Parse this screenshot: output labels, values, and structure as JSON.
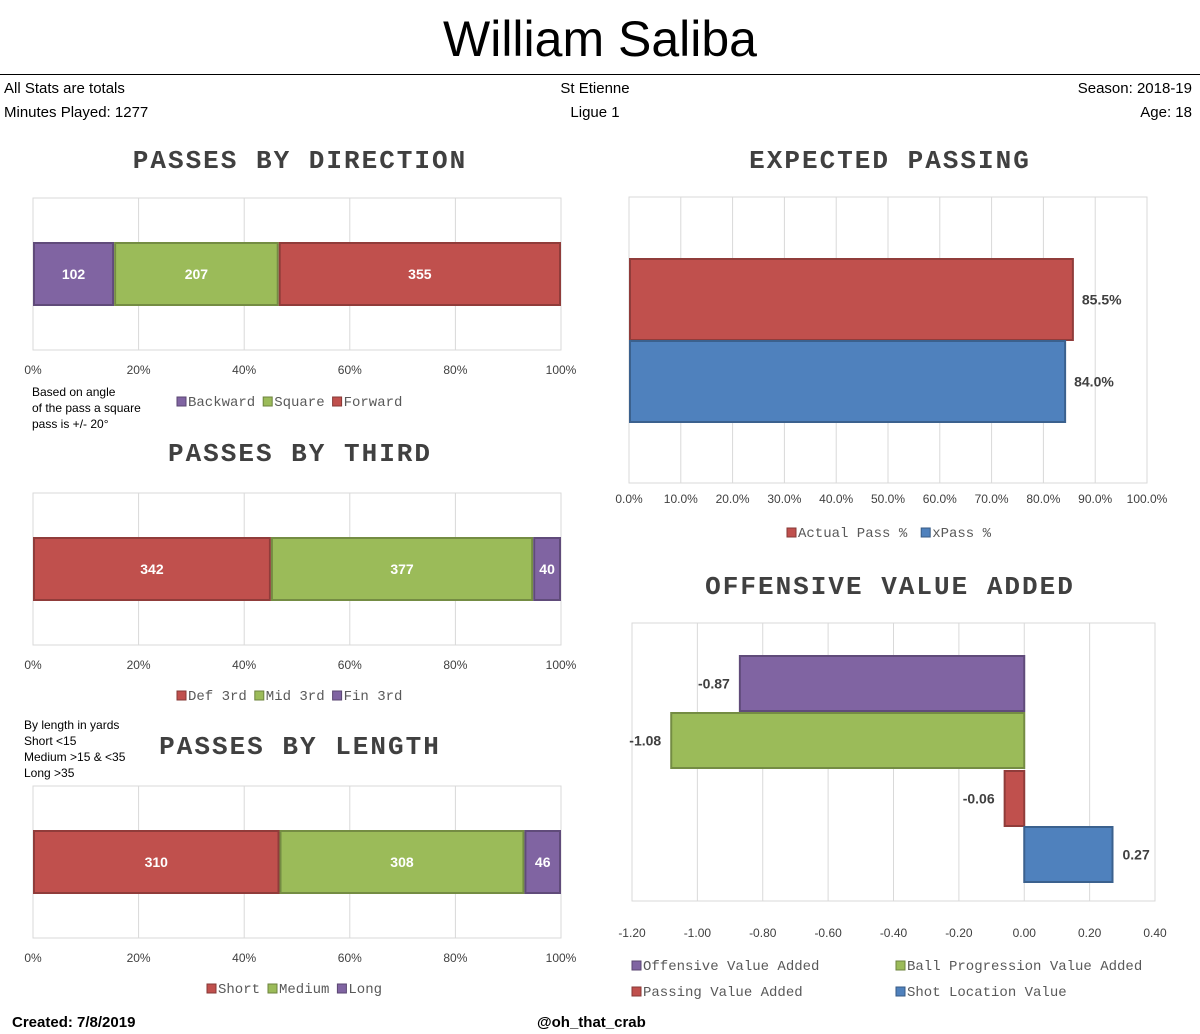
{
  "header": {
    "title": "William Saliba",
    "left_line1": "All Stats are totals",
    "left_line2": "Minutes Played: 1277",
    "center_line1": "St Etienne",
    "center_line2": "Ligue 1",
    "right_line1": "Season: 2018-19",
    "right_line2": "Age: 18"
  },
  "notes": {
    "direction_note": [
      "Based on angle",
      "of the pass a square",
      "pass is +/- 20°"
    ],
    "length_note": [
      "By length in yards",
      "Short <15",
      "Medium >15 & <35",
      "Long >35"
    ]
  },
  "footer": {
    "created": "Created: 7/8/2019",
    "handle": "@oh_that_crab"
  },
  "colors": {
    "purple": "#8064a2",
    "green": "#9bbb59",
    "red": "#c0504d",
    "blue": "#4f81bd"
  },
  "chart_data": [
    {
      "id": "direction",
      "type": "bar",
      "stacked": "percent",
      "title": "PASSES BY DIRECTION",
      "xlim": [
        0,
        100
      ],
      "ticks": [
        "0%",
        "20%",
        "40%",
        "60%",
        "80%",
        "100%"
      ],
      "series": [
        {
          "name": "Backward",
          "values": [
            102
          ],
          "color": "#8064a2"
        },
        {
          "name": "Square",
          "values": [
            207
          ],
          "color": "#9bbb59"
        },
        {
          "name": "Forward",
          "values": [
            355
          ],
          "color": "#c0504d"
        }
      ],
      "legend": "bottom"
    },
    {
      "id": "third",
      "type": "bar",
      "stacked": "percent",
      "title": "PASSES BY THIRD",
      "xlim": [
        0,
        100
      ],
      "ticks": [
        "0%",
        "20%",
        "40%",
        "60%",
        "80%",
        "100%"
      ],
      "series": [
        {
          "name": "Def 3rd",
          "values": [
            342
          ],
          "color": "#c0504d"
        },
        {
          "name": "Mid 3rd",
          "values": [
            377
          ],
          "color": "#9bbb59"
        },
        {
          "name": "Fin 3rd",
          "values": [
            40
          ],
          "color": "#8064a2"
        }
      ],
      "legend": "bottom"
    },
    {
      "id": "length",
      "type": "bar",
      "stacked": "percent",
      "title": "PASSES BY LENGTH",
      "xlim": [
        0,
        100
      ],
      "ticks": [
        "0%",
        "20%",
        "40%",
        "60%",
        "80%",
        "100%"
      ],
      "series": [
        {
          "name": "Short",
          "values": [
            310
          ],
          "color": "#c0504d"
        },
        {
          "name": "Medium",
          "values": [
            308
          ],
          "color": "#9bbb59"
        },
        {
          "name": "Long",
          "values": [
            46
          ],
          "color": "#8064a2"
        }
      ],
      "legend": "bottom"
    },
    {
      "id": "expected",
      "type": "bar",
      "orientation": "horizontal",
      "title": "EXPECTED PASSING",
      "xlim": [
        0,
        100
      ],
      "ticks": [
        "0.0%",
        "10.0%",
        "20.0%",
        "30.0%",
        "40.0%",
        "50.0%",
        "60.0%",
        "70.0%",
        "80.0%",
        "90.0%",
        "100.0%"
      ],
      "series": [
        {
          "name": "Actual Pass %",
          "value": 85.5,
          "label": "85.5%",
          "color": "#c0504d"
        },
        {
          "name": "xPass %",
          "value": 84.0,
          "label": "84.0%",
          "color": "#4f81bd"
        }
      ],
      "legend": "bottom"
    },
    {
      "id": "ova",
      "type": "bar",
      "orientation": "horizontal",
      "title": "OFFENSIVE VALUE ADDED",
      "xlim": [
        -1.2,
        0.4
      ],
      "ticks": [
        "-1.20",
        "-1.00",
        "-0.80",
        "-0.60",
        "-0.40",
        "-0.20",
        "0.00",
        "0.20",
        "0.40"
      ],
      "series": [
        {
          "name": "Offensive Value Added",
          "value": -0.87,
          "label": "-0.87",
          "color": "#8064a2"
        },
        {
          "name": "Ball Progression Value Added",
          "value": -1.08,
          "label": "-1.08",
          "color": "#9bbb59"
        },
        {
          "name": "Passing Value Added",
          "value": -0.06,
          "label": "-0.06",
          "color": "#c0504d"
        },
        {
          "name": "Shot Location Value",
          "value": 0.27,
          "label": "0.27",
          "color": "#4f81bd"
        }
      ],
      "legend": "bottom"
    }
  ]
}
